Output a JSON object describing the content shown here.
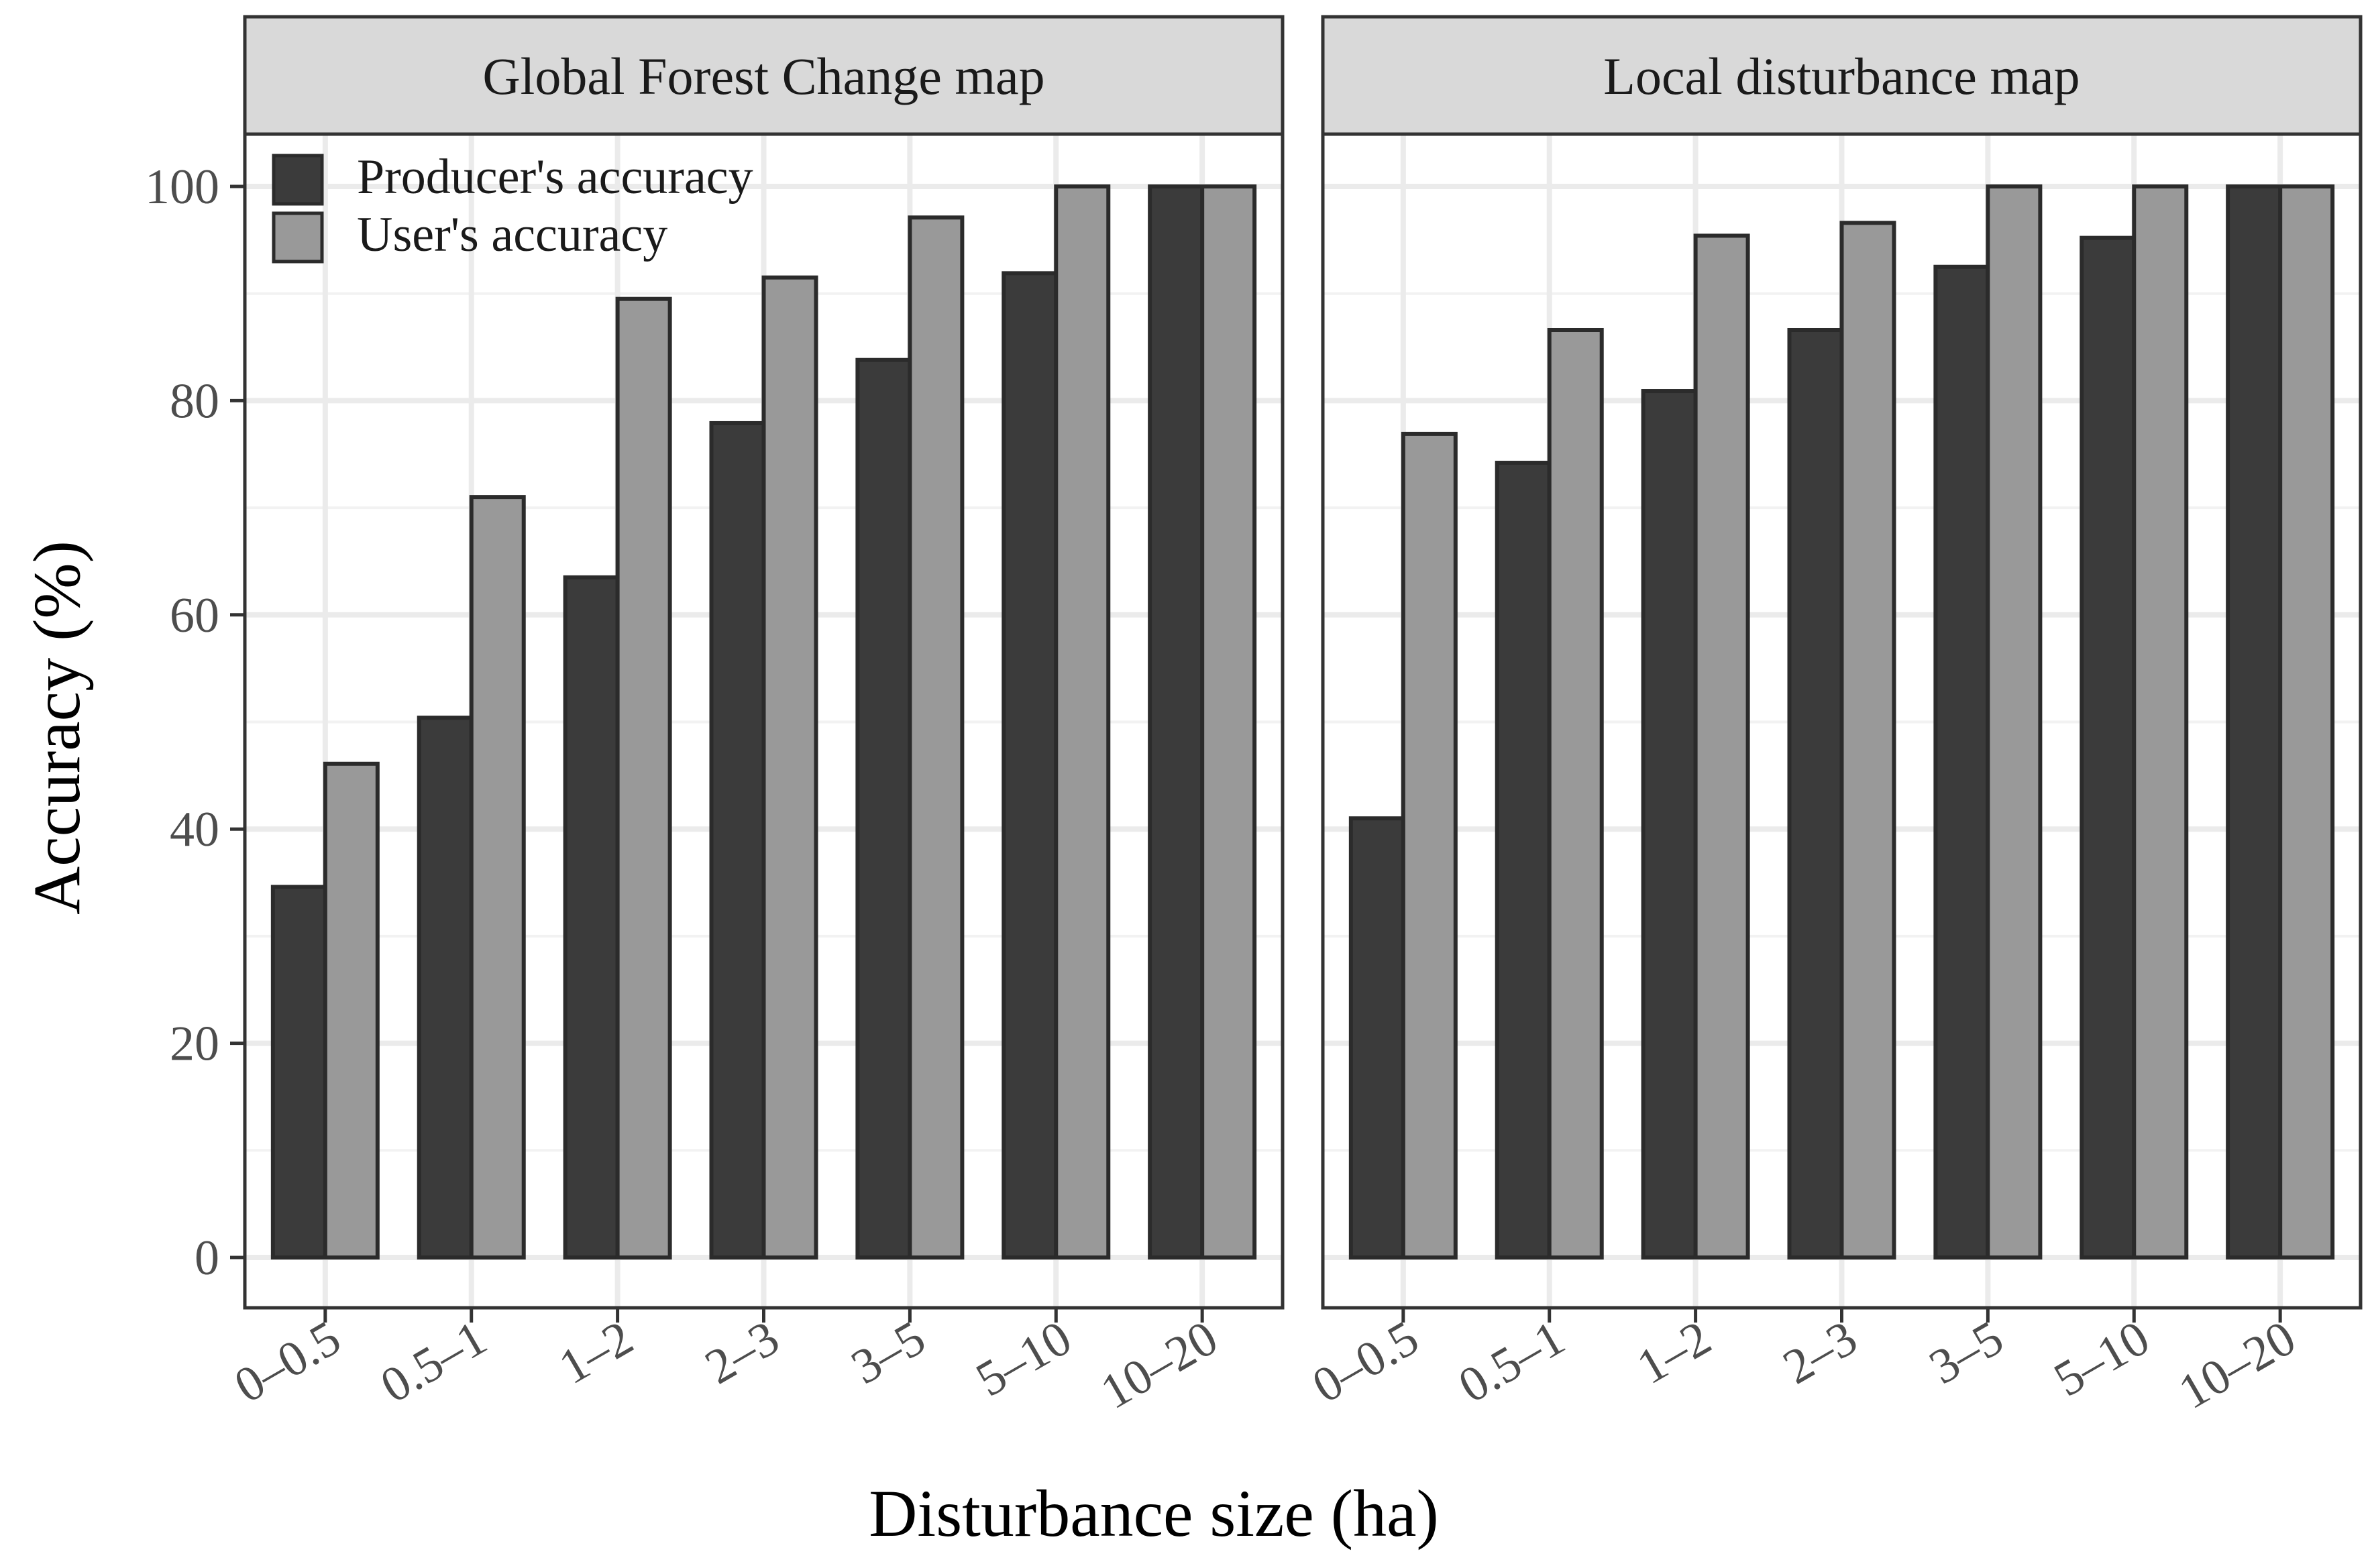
{
  "chart_data": {
    "type": "bar",
    "xlabel": "Disturbance size (ha)",
    "ylabel": "Accuracy (%)",
    "ylim": [
      0,
      108
    ],
    "yticks": [
      0,
      20,
      40,
      60,
      80,
      100
    ],
    "grid": true,
    "legend_position": "top-left",
    "categories": [
      "0–0.5",
      "0.5–1",
      "1–2",
      "2–3",
      "3–5",
      "5–10",
      "10–20"
    ],
    "series_colors": {
      "producers": "#3b3b3b",
      "users": "#999999"
    },
    "legend": [
      {
        "key": "producers",
        "label": "Producer's accuracy"
      },
      {
        "key": "users",
        "label": "User's accuracy"
      }
    ],
    "panels": [
      {
        "title": "Global Forest Change map",
        "series": [
          {
            "name": "Producer's accuracy",
            "values": [
              34.6,
              50.4,
              63.5,
              77.9,
              83.8,
              91.9,
              100
            ]
          },
          {
            "name": "User's accuracy",
            "values": [
              46.1,
              71.0,
              89.5,
              91.5,
              97.1,
              100,
              100
            ]
          }
        ]
      },
      {
        "title": "Local disturbance map",
        "series": [
          {
            "name": "Producer's accuracy",
            "values": [
              41.0,
              74.2,
              80.9,
              86.6,
              92.5,
              95.2,
              100
            ]
          },
          {
            "name": "User's accuracy",
            "values": [
              76.9,
              86.6,
              95.4,
              96.6,
              100,
              100,
              100
            ]
          }
        ]
      }
    ]
  }
}
